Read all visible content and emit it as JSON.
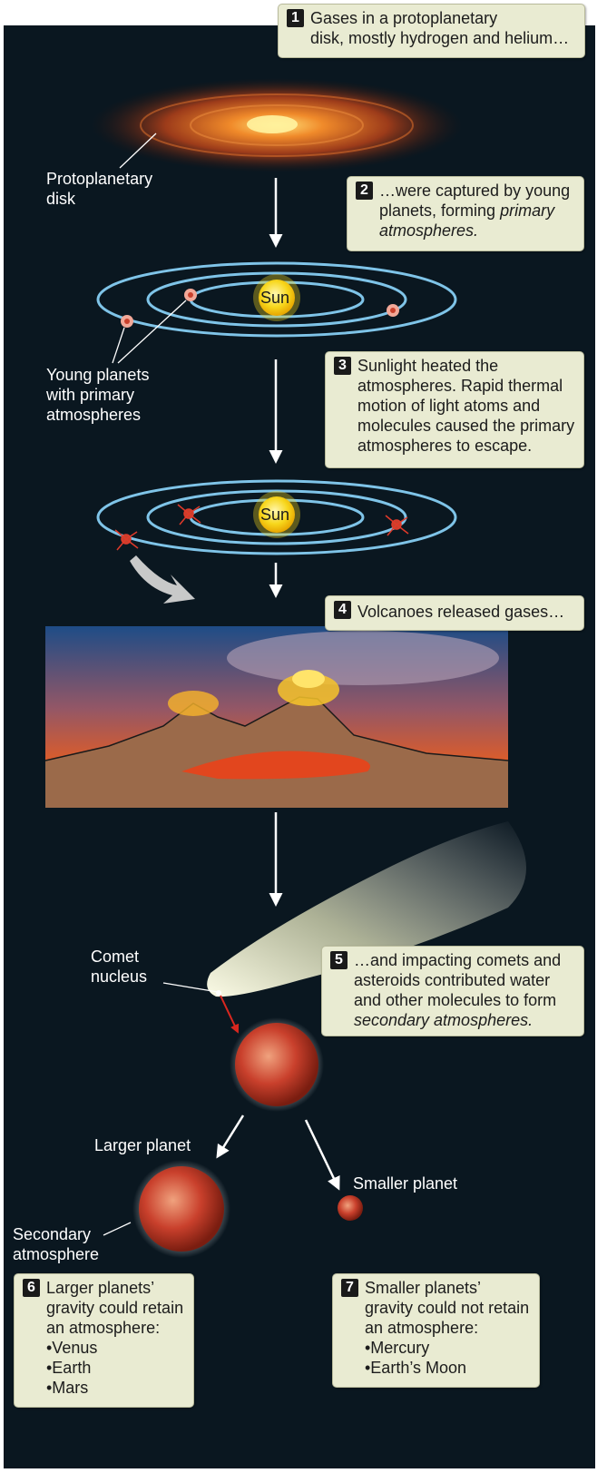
{
  "steps": [
    {
      "num": "1",
      "lines": [
        "Gases in a protoplanetary",
        "disk, mostly hydrogen and helium…"
      ]
    },
    {
      "num": "2",
      "lines": [
        "…were captured by young",
        "planets, forming ",
        "atmospheres."
      ],
      "italic": "primary"
    },
    {
      "num": "3",
      "lines": [
        "Sunlight heated the",
        "atmospheres. Rapid thermal",
        "motion of light atoms and",
        "molecules caused the primary",
        "atmospheres to escape."
      ]
    },
    {
      "num": "4",
      "lines": [
        "Volcanoes released gases…"
      ]
    },
    {
      "num": "5",
      "lines": [
        "…and impacting comets and",
        "asteroids contributed water",
        "and other molecules to form",
        "secondary atmospheres."
      ]
    },
    {
      "num": "6",
      "lines": [
        "Larger planets’",
        "gravity could retain",
        "an atmosphere:",
        "•Venus",
        "•Earth",
        "•Mars"
      ]
    },
    {
      "num": "7",
      "lines": [
        "Smaller planets’",
        "gravity could not retain",
        "an atmosphere:",
        "•Mercury",
        "•Earth’s Moon"
      ]
    }
  ],
  "labels": {
    "protoplanetary_disk": [
      "Protoplanetary",
      "disk"
    ],
    "young_planets": [
      "Young planets",
      "with primary",
      "atmospheres"
    ],
    "sun": "Sun",
    "comet_nucleus": [
      "Comet",
      "nucleus"
    ],
    "larger_planet": "Larger planet",
    "smaller_planet": "Smaller planet",
    "secondary_atmosphere": [
      "Secondary",
      "atmosphere"
    ]
  },
  "colors": {
    "background": "#0a1720",
    "orbit": "#7fc4e8",
    "box": "#e9ebd2",
    "planet": "#c9402c",
    "sun": "#f7d71c"
  }
}
